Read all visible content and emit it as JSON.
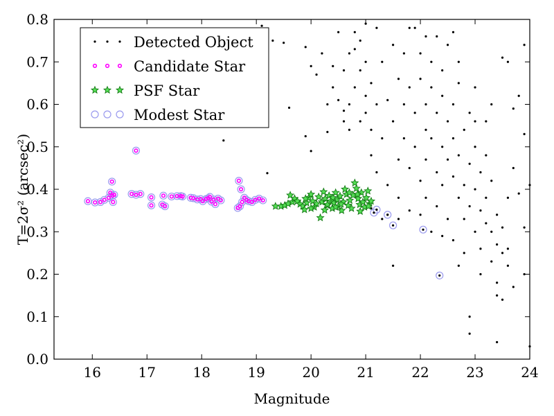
{
  "chart_data": {
    "type": "scatter",
    "title": "",
    "xlabel": "Magnitude",
    "ylabel": "T=2σ² (arcsec²)",
    "xlim": [
      15.3,
      24.0
    ],
    "ylim": [
      0.0,
      0.8
    ],
    "xticks": [
      16,
      17,
      18,
      19,
      20,
      21,
      22,
      23,
      24
    ],
    "yticks": [
      0.0,
      0.1,
      0.2,
      0.3,
      0.4,
      0.5,
      0.6,
      0.7,
      0.8
    ],
    "grid": false,
    "legend_position": "top-left",
    "series": [
      {
        "name": "Detected Object",
        "marker": "dot",
        "color": "#000000",
        "points": [
          [
            18.4,
            0.515
          ],
          [
            19.2,
            0.438
          ],
          [
            19.1,
            0.785
          ],
          [
            19.3,
            0.75
          ],
          [
            19.5,
            0.745
          ],
          [
            19.6,
            0.592
          ],
          [
            19.9,
            0.735
          ],
          [
            19.9,
            0.525
          ],
          [
            20.0,
            0.49
          ],
          [
            20.0,
            0.69
          ],
          [
            20.1,
            0.67
          ],
          [
            20.2,
            0.72
          ],
          [
            20.3,
            0.535
          ],
          [
            20.4,
            0.69
          ],
          [
            20.4,
            0.64
          ],
          [
            20.5,
            0.61
          ],
          [
            20.5,
            0.77
          ],
          [
            20.6,
            0.56
          ],
          [
            20.6,
            0.585
          ],
          [
            20.6,
            0.68
          ],
          [
            20.7,
            0.54
          ],
          [
            20.7,
            0.6
          ],
          [
            20.7,
            0.72
          ],
          [
            20.8,
            0.64
          ],
          [
            20.8,
            0.77
          ],
          [
            20.9,
            0.56
          ],
          [
            20.9,
            0.68
          ],
          [
            20.9,
            0.75
          ],
          [
            21.0,
            0.62
          ],
          [
            21.0,
            0.58
          ],
          [
            21.0,
            0.7
          ],
          [
            21.0,
            0.79
          ],
          [
            21.1,
            0.48
          ],
          [
            21.1,
            0.54
          ],
          [
            21.1,
            0.65
          ],
          [
            21.2,
            0.78
          ],
          [
            21.2,
            0.6
          ],
          [
            21.2,
            0.44
          ],
          [
            21.3,
            0.52
          ],
          [
            21.3,
            0.7
          ],
          [
            21.4,
            0.61
          ],
          [
            21.4,
            0.41
          ],
          [
            21.4,
            0.34
          ],
          [
            21.5,
            0.74
          ],
          [
            21.5,
            0.56
          ],
          [
            21.5,
            0.22
          ],
          [
            21.6,
            0.66
          ],
          [
            21.6,
            0.47
          ],
          [
            21.6,
            0.38
          ],
          [
            21.7,
            0.52
          ],
          [
            21.7,
            0.6
          ],
          [
            21.7,
            0.72
          ],
          [
            21.8,
            0.45
          ],
          [
            21.8,
            0.35
          ],
          [
            21.8,
            0.64
          ],
          [
            21.9,
            0.58
          ],
          [
            21.9,
            0.78
          ],
          [
            21.9,
            0.5
          ],
          [
            22.0,
            0.42
          ],
          [
            22.0,
            0.66
          ],
          [
            22.0,
            0.34
          ],
          [
            22.0,
            0.72
          ],
          [
            22.1,
            0.54
          ],
          [
            22.1,
            0.6
          ],
          [
            22.1,
            0.47
          ],
          [
            22.1,
            0.38
          ],
          [
            22.2,
            0.7
          ],
          [
            22.2,
            0.64
          ],
          [
            22.2,
            0.52
          ],
          [
            22.2,
            0.3
          ],
          [
            22.3,
            0.76
          ],
          [
            22.3,
            0.58
          ],
          [
            22.3,
            0.44
          ],
          [
            22.3,
            0.36
          ],
          [
            22.4,
            0.68
          ],
          [
            22.4,
            0.5
          ],
          [
            22.4,
            0.62
          ],
          [
            22.4,
            0.41
          ],
          [
            22.5,
            0.56
          ],
          [
            22.5,
            0.47
          ],
          [
            22.5,
            0.33
          ],
          [
            22.5,
            0.74
          ],
          [
            22.6,
            0.6
          ],
          [
            22.6,
            0.43
          ],
          [
            22.6,
            0.52
          ],
          [
            22.6,
            0.28
          ],
          [
            22.7,
            0.65
          ],
          [
            22.7,
            0.38
          ],
          [
            22.7,
            0.48
          ],
          [
            22.7,
            0.7
          ],
          [
            22.8,
            0.54
          ],
          [
            22.8,
            0.41
          ],
          [
            22.8,
            0.33
          ],
          [
            22.8,
            0.25
          ],
          [
            22.9,
            0.46
          ],
          [
            22.9,
            0.58
          ],
          [
            22.9,
            0.36
          ],
          [
            22.9,
            0.1
          ],
          [
            22.9,
            0.06
          ],
          [
            23.0,
            0.5
          ],
          [
            23.0,
            0.4
          ],
          [
            23.0,
            0.3
          ],
          [
            23.0,
            0.64
          ],
          [
            23.1,
            0.44
          ],
          [
            23.1,
            0.35
          ],
          [
            23.1,
            0.26
          ],
          [
            23.2,
            0.38
          ],
          [
            23.2,
            0.32
          ],
          [
            23.2,
            0.48
          ],
          [
            23.2,
            0.56
          ],
          [
            23.3,
            0.3
          ],
          [
            23.3,
            0.23
          ],
          [
            23.3,
            0.42
          ],
          [
            23.4,
            0.27
          ],
          [
            23.4,
            0.34
          ],
          [
            23.4,
            0.04
          ],
          [
            23.4,
            0.18
          ],
          [
            23.5,
            0.25
          ],
          [
            23.5,
            0.14
          ],
          [
            23.5,
            0.31
          ],
          [
            23.5,
            0.71
          ],
          [
            23.6,
            0.26
          ],
          [
            23.6,
            0.38
          ],
          [
            23.6,
            0.7
          ],
          [
            23.7,
            0.17
          ],
          [
            23.7,
            0.45
          ],
          [
            23.8,
            0.39
          ],
          [
            23.8,
            0.62
          ],
          [
            23.9,
            0.53
          ],
          [
            23.9,
            0.31
          ],
          [
            23.9,
            0.2
          ],
          [
            23.9,
            0.74
          ],
          [
            24.0,
            0.03
          ],
          [
            24.0,
            0.41
          ],
          [
            21.1,
            0.355
          ],
          [
            21.3,
            0.33
          ],
          [
            21.6,
            0.33
          ],
          [
            20.8,
            0.73
          ],
          [
            20.3,
            0.6
          ],
          [
            21.8,
            0.78
          ],
          [
            22.1,
            0.76
          ],
          [
            22.6,
            0.77
          ],
          [
            23.0,
            0.56
          ],
          [
            23.3,
            0.6
          ],
          [
            23.7,
            0.59
          ],
          [
            22.4,
            0.29
          ],
          [
            22.7,
            0.22
          ],
          [
            23.1,
            0.2
          ],
          [
            23.4,
            0.15
          ],
          [
            23.6,
            0.22
          ]
        ]
      },
      {
        "name": "Candidate Star",
        "marker": "small-circle",
        "color": "#ff00ff",
        "points": [
          [
            15.92,
            0.372
          ],
          [
            16.05,
            0.369
          ],
          [
            16.15,
            0.37
          ],
          [
            16.22,
            0.375
          ],
          [
            16.3,
            0.38
          ],
          [
            16.33,
            0.392
          ],
          [
            16.37,
            0.385
          ],
          [
            16.38,
            0.37
          ],
          [
            16.4,
            0.387
          ],
          [
            16.36,
            0.418
          ],
          [
            16.8,
            0.491
          ],
          [
            16.72,
            0.389
          ],
          [
            16.8,
            0.387
          ],
          [
            16.88,
            0.389
          ],
          [
            17.08,
            0.381
          ],
          [
            17.08,
            0.362
          ],
          [
            17.28,
            0.364
          ],
          [
            17.33,
            0.36
          ],
          [
            17.3,
            0.385
          ],
          [
            17.45,
            0.383
          ],
          [
            17.55,
            0.384
          ],
          [
            17.62,
            0.384
          ],
          [
            17.65,
            0.383
          ],
          [
            17.8,
            0.38
          ],
          [
            17.85,
            0.379
          ],
          [
            17.92,
            0.376
          ],
          [
            17.98,
            0.377
          ],
          [
            18.02,
            0.372
          ],
          [
            18.08,
            0.377
          ],
          [
            18.12,
            0.379
          ],
          [
            18.15,
            0.382
          ],
          [
            18.18,
            0.371
          ],
          [
            18.22,
            0.376
          ],
          [
            18.25,
            0.365
          ],
          [
            18.3,
            0.378
          ],
          [
            18.35,
            0.374
          ],
          [
            18.68,
            0.42
          ],
          [
            18.72,
            0.4
          ],
          [
            18.7,
            0.36
          ],
          [
            18.66,
            0.356
          ],
          [
            18.74,
            0.37
          ],
          [
            18.78,
            0.38
          ],
          [
            18.82,
            0.375
          ],
          [
            18.86,
            0.372
          ],
          [
            18.92,
            0.37
          ],
          [
            18.98,
            0.375
          ],
          [
            19.05,
            0.378
          ],
          [
            19.12,
            0.374
          ]
        ]
      },
      {
        "name": "PSF Star",
        "marker": "star",
        "color": "#22aa22",
        "points": [
          [
            19.35,
            0.36
          ],
          [
            19.45,
            0.36
          ],
          [
            19.52,
            0.362
          ],
          [
            19.58,
            0.366
          ],
          [
            19.62,
            0.386
          ],
          [
            19.66,
            0.37
          ],
          [
            19.7,
            0.378
          ],
          [
            19.75,
            0.372
          ],
          [
            19.8,
            0.365
          ],
          [
            19.85,
            0.36
          ],
          [
            19.88,
            0.352
          ],
          [
            19.92,
            0.368
          ],
          [
            19.96,
            0.38
          ],
          [
            20.0,
            0.388
          ],
          [
            20.03,
            0.372
          ],
          [
            20.06,
            0.358
          ],
          [
            20.1,
            0.366
          ],
          [
            20.14,
            0.382
          ],
          [
            20.17,
            0.333
          ],
          [
            20.2,
            0.37
          ],
          [
            20.23,
            0.394
          ],
          [
            20.26,
            0.378
          ],
          [
            20.3,
            0.362
          ],
          [
            20.33,
            0.385
          ],
          [
            20.36,
            0.372
          ],
          [
            20.39,
            0.355
          ],
          [
            20.42,
            0.368
          ],
          [
            20.45,
            0.392
          ],
          [
            20.48,
            0.376
          ],
          [
            20.5,
            0.36
          ],
          [
            20.53,
            0.384
          ],
          [
            20.56,
            0.35
          ],
          [
            20.59,
            0.37
          ],
          [
            20.62,
            0.4
          ],
          [
            20.65,
            0.388
          ],
          [
            20.68,
            0.362
          ],
          [
            20.71,
            0.374
          ],
          [
            20.74,
            0.355
          ],
          [
            20.77,
            0.386
          ],
          [
            20.8,
            0.415
          ],
          [
            20.83,
            0.402
          ],
          [
            20.86,
            0.378
          ],
          [
            20.89,
            0.364
          ],
          [
            20.92,
            0.392
          ],
          [
            20.95,
            0.37
          ],
          [
            20.98,
            0.358
          ],
          [
            21.01,
            0.38
          ],
          [
            21.04,
            0.396
          ],
          [
            21.07,
            0.366
          ],
          [
            21.1,
            0.372
          ],
          [
            20.3,
            0.364
          ],
          [
            20.4,
            0.38
          ],
          [
            20.55,
            0.365
          ],
          [
            20.9,
            0.348
          ],
          [
            20.0,
            0.355
          ],
          [
            19.9,
            0.378
          ],
          [
            20.7,
            0.392
          ],
          [
            20.25,
            0.351
          ],
          [
            20.45,
            0.358
          ],
          [
            20.85,
            0.388
          ],
          [
            21.05,
            0.36
          ]
        ]
      },
      {
        "name": "Modest Star",
        "marker": "open-circle",
        "color": "#9999ee",
        "points": [
          [
            21.15,
            0.345
          ],
          [
            21.5,
            0.315
          ],
          [
            22.05,
            0.305
          ],
          [
            22.35,
            0.197
          ],
          [
            21.2,
            0.352
          ],
          [
            21.4,
            0.34
          ]
        ]
      }
    ]
  }
}
